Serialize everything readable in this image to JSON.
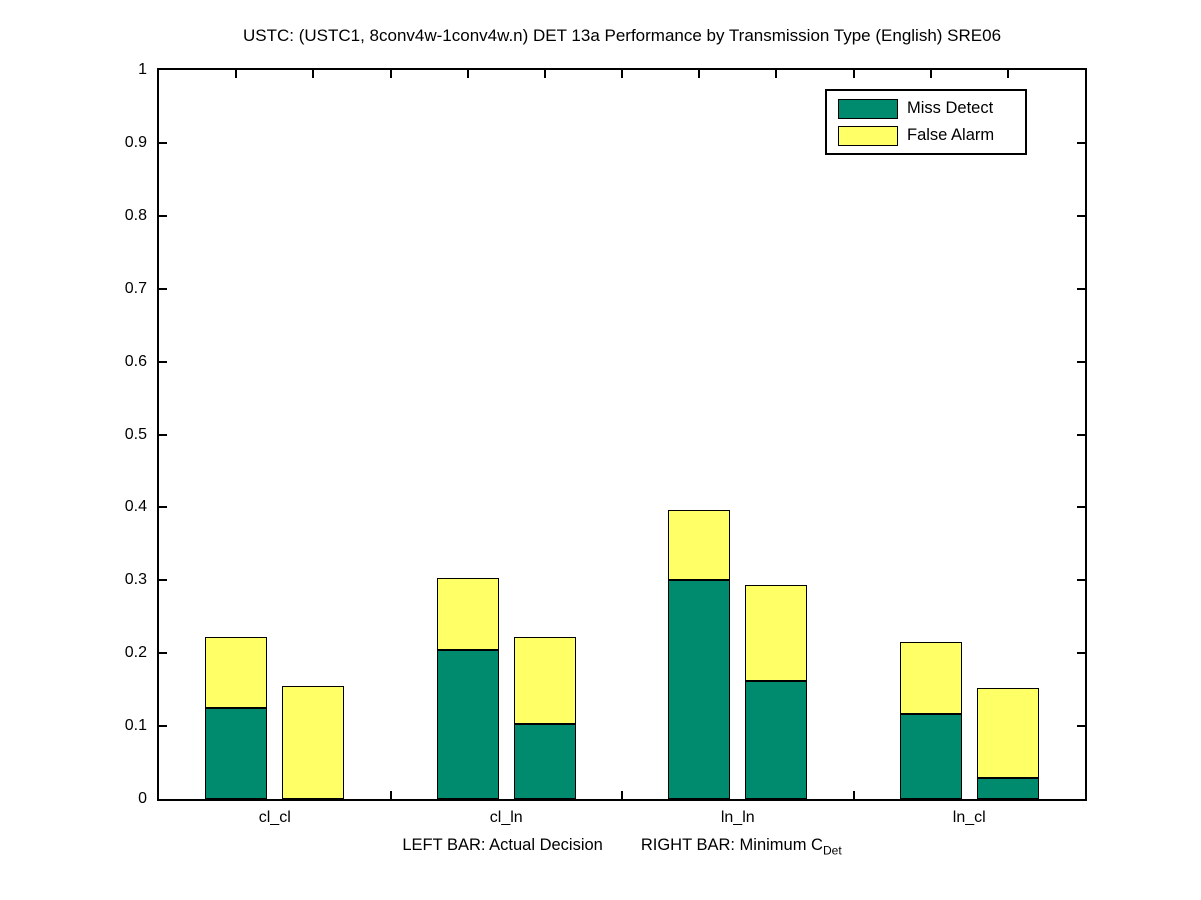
{
  "figure": {
    "title": "USTC: (USTC1, 8conv4w-1conv4w.n) DET 13a Performance by Transmission Type (English) SRE06"
  },
  "legend": {
    "items": [
      {
        "label": "Miss Detect",
        "color": "#008A6E"
      },
      {
        "label": "False Alarm",
        "color": "#FFFF66"
      }
    ]
  },
  "xlabel": {
    "left_text": "LEFT BAR: Actual Decision",
    "right_text": "RIGHT BAR: Minimum C",
    "right_subscript": "Det"
  },
  "chart_data": {
    "type": "bar",
    "stacked": true,
    "title": "USTC: (USTC1, 8conv4w-1conv4w.n) DET 13a Performance by Transmission Type (English) SRE06",
    "categories": [
      "cl_cl",
      "cl_ln",
      "ln_ln",
      "ln_cl"
    ],
    "bar_semantics": {
      "left": "Actual Decision",
      "right": "Minimum C_Det"
    },
    "series": [
      {
        "name": "Miss Detect",
        "color": "#008A6E",
        "left_values": [
          0.125,
          0.205,
          0.3,
          0.117
        ],
        "right_values": [
          0.0,
          0.103,
          0.162,
          0.029
        ]
      },
      {
        "name": "False Alarm",
        "color": "#FFFF66",
        "left_values": [
          0.097,
          0.098,
          0.096,
          0.098
        ],
        "right_values": [
          0.155,
          0.119,
          0.132,
          0.123
        ]
      }
    ],
    "bar_totals": {
      "left": [
        0.222,
        0.303,
        0.396,
        0.215
      ],
      "right": [
        0.155,
        0.222,
        0.294,
        0.152
      ]
    },
    "ylim": [
      0,
      1
    ],
    "ytick_step": 0.1,
    "xlim_units": [
      0,
      12
    ],
    "bar_centers_units": [
      [
        1,
        2
      ],
      [
        4,
        5
      ],
      [
        7,
        8
      ],
      [
        10,
        11
      ]
    ],
    "grid": false,
    "legend_position": "top-right",
    "frame": "box-on"
  }
}
